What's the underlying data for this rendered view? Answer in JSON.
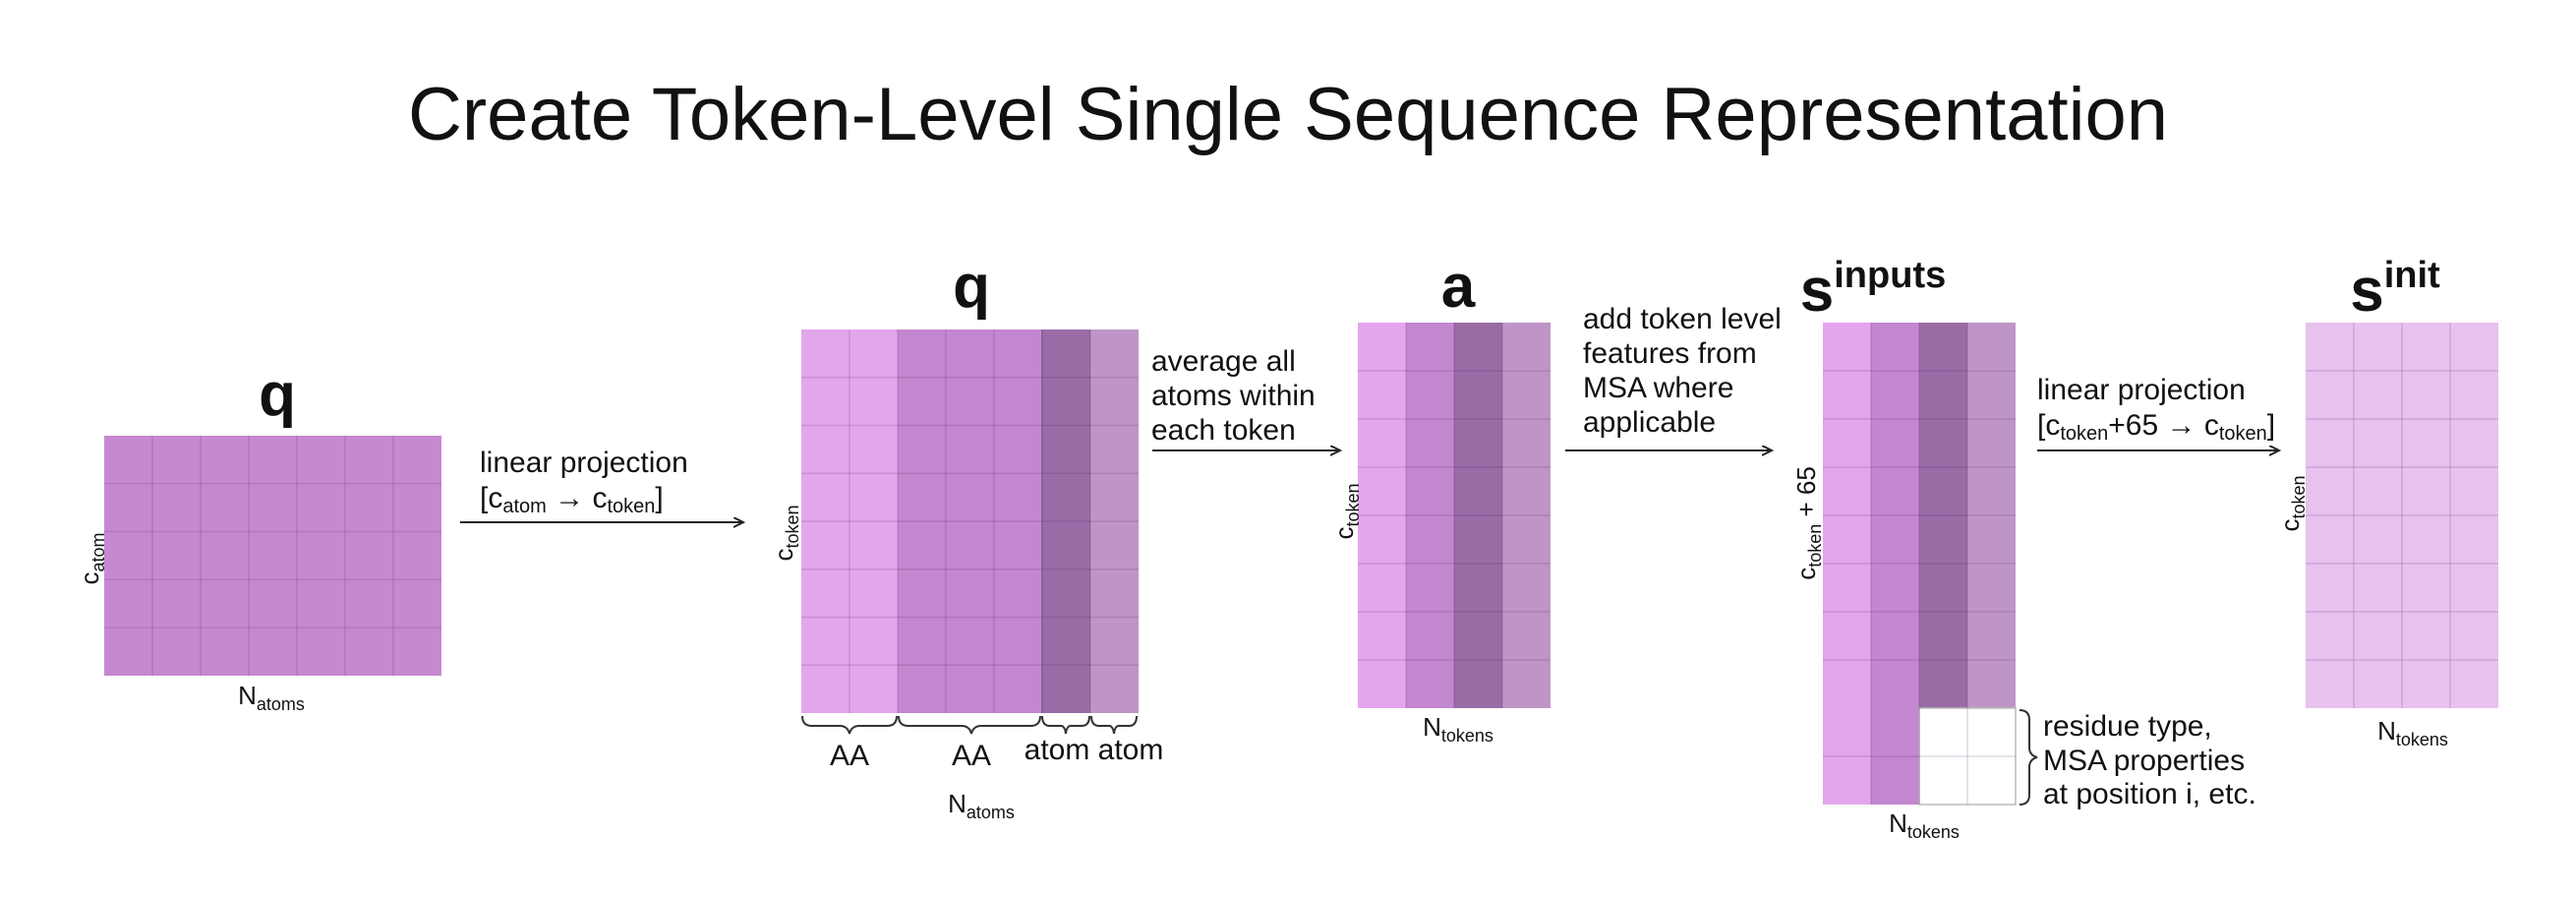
{
  "title": "Create Token-Level Single Sequence Representation",
  "colors": {
    "q_atom": "#c689d0",
    "aa_light": "#e3a6ec",
    "aa_mid": "#c387cf",
    "atom_dark": "#9a6ca6",
    "atom_light": "#bf95c8",
    "label_dark": "#9a62a8",
    "label_pink": "#e2a4ec",
    "s_init": "#e8c2ef",
    "empty": "#ffffff"
  },
  "matrices": {
    "q_atoms": {
      "label": "q",
      "row_axis": {
        "base": "c",
        "sub": "atom"
      },
      "col_axis": {
        "base": "N",
        "sub": "atoms"
      }
    },
    "q_token": {
      "label": "q",
      "row_axis": {
        "base": "c",
        "sub": "token"
      },
      "col_axis": {
        "base": "N",
        "sub": "atoms"
      },
      "groups": [
        "AA",
        "AA",
        "atom",
        "atom"
      ]
    },
    "a": {
      "label": "a",
      "row_axis": {
        "base": "c",
        "sub": "token"
      },
      "col_axis": {
        "base": "N",
        "sub": "tokens"
      }
    },
    "s_inputs": {
      "label_base": "s",
      "label_sup": "inputs",
      "row_axis": {
        "base": "c",
        "sub": "token",
        "suffix": " + 65"
      },
      "col_axis": {
        "base": "N",
        "sub": "tokens"
      },
      "note": [
        "residue type,",
        "MSA properties",
        "at position i, etc."
      ]
    },
    "s_init": {
      "label_base": "s",
      "label_sup": "init",
      "row_axis": {
        "base": "c",
        "sub": "token"
      },
      "col_axis": {
        "base": "N",
        "sub": "tokens"
      }
    }
  },
  "steps": {
    "step1": {
      "line1": "linear projection",
      "line2": {
        "open": "[c",
        "sub1": "atom",
        "arrow": " → c",
        "sub2": "token",
        "close": "]"
      }
    },
    "step2": [
      "average all",
      "atoms within",
      "each token"
    ],
    "step3": [
      "add token level",
      "features from",
      "MSA where",
      "applicable"
    ],
    "step4": {
      "line1": "linear projection",
      "line2": {
        "open": "[c",
        "sub1": "token",
        "mid": "+65 → c",
        "sub2": "token",
        "close": "]"
      }
    }
  }
}
